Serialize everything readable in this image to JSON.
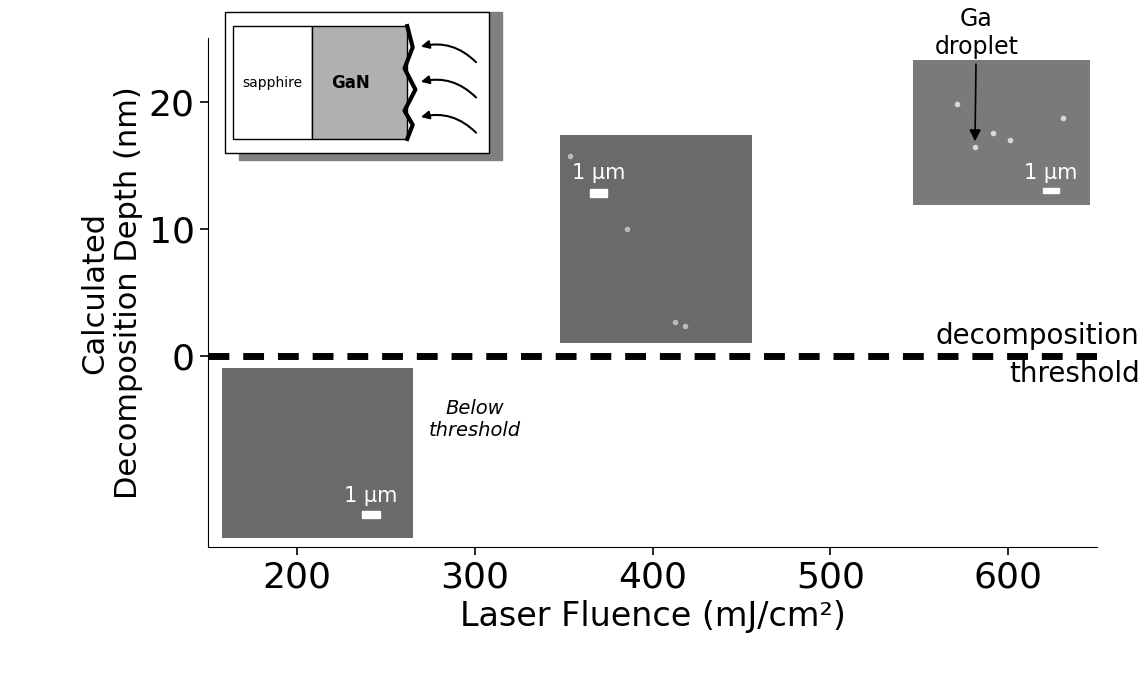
{
  "chart_data": {
    "type": "line",
    "xlabel": "Laser Fluence (mJ/cm²)",
    "ylabel": "Calculated\nDecomposition Depth (nm)",
    "xlim": [
      150,
      650
    ],
    "xticks": [
      200,
      300,
      400,
      500,
      600
    ],
    "ylim": [
      -15,
      25
    ],
    "yticks": [
      0,
      10,
      20
    ],
    "grid": false,
    "threshold": {
      "value": 0,
      "label": "decomposition\nthreshold",
      "line_style": "dashed",
      "color": "#000000"
    },
    "annotations": [
      "Below\nthreshold"
    ],
    "images": [
      {
        "scale_bar": "1 μm"
      },
      {
        "scale_bar": "1 μm"
      },
      {
        "scale_bar": "1 μm",
        "annotation": "Ga\ndroplet"
      }
    ],
    "schematic": {
      "layers": [
        "sapphire",
        "GaN"
      ]
    }
  }
}
